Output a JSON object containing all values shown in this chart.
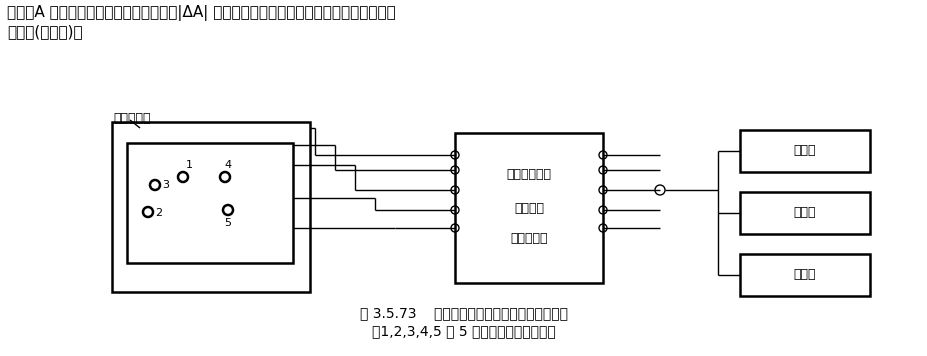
{
  "title_text": "式中，A 为同次测量中中心点的振幅值；|ΔA| 为同次测量中各点振幅值对中心点振幅值的最",
  "title_text2": "大偏差(绝对值)。",
  "caption1": "图 3.5.73    机械振动台台面振幅值均匀度的检测",
  "caption2": "（1,2,3,4,5 为 5 只加速度计安装位置）",
  "label_vibration": "振动台台面",
  "label_multi_ch1": "多通道测振仪",
  "label_multi_ch2": "（多通道",
  "label_multi_ch3": "积分网络）",
  "label_freq": "频率计",
  "label_volt": "电压表",
  "label_scope": "示波器",
  "bg_color": "#ffffff",
  "line_color": "#000000",
  "font_size_main": 11,
  "font_size_caption": 10,
  "font_size_label": 9,
  "font_size_small": 8
}
